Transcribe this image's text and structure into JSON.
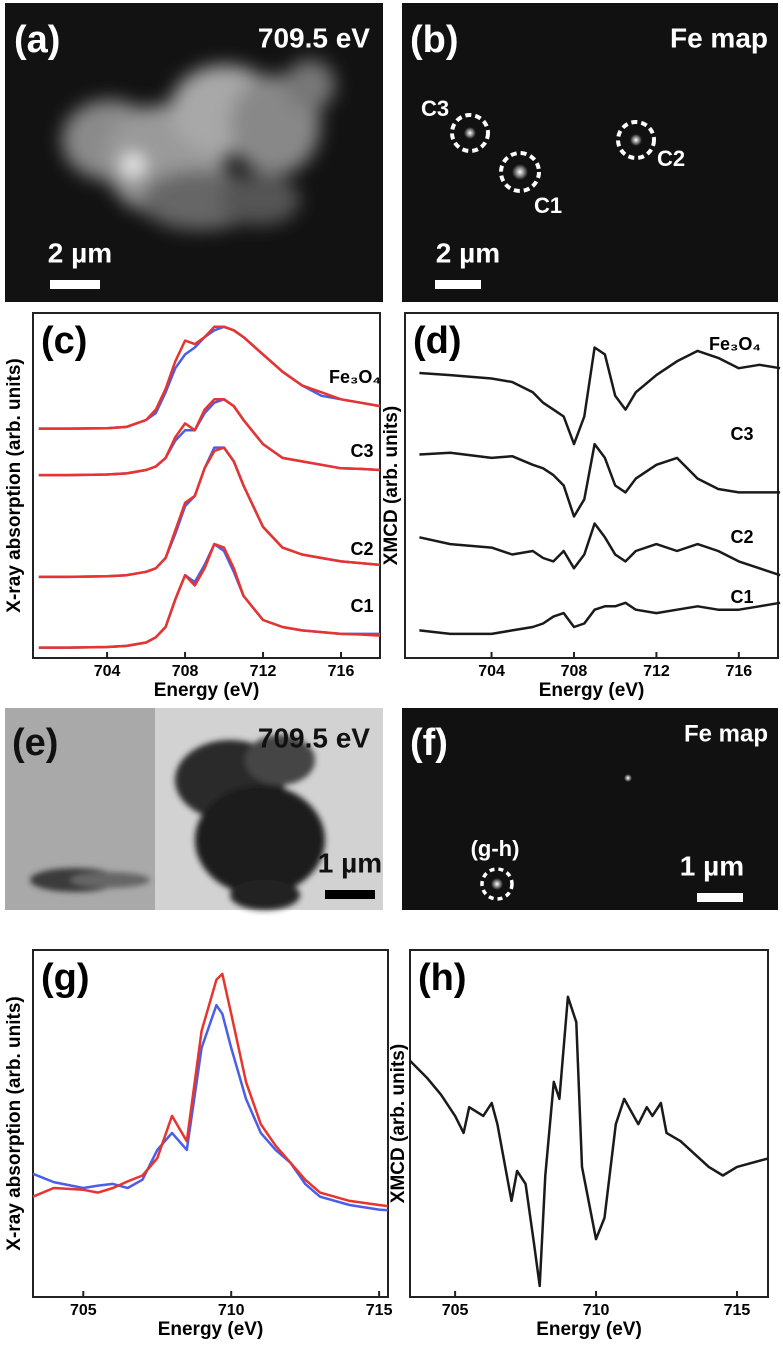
{
  "images": [
    {
      "label": "(a)",
      "caption": "709.5 eV",
      "scale_bar": "2 µm"
    },
    {
      "label": "(b)",
      "caption": "Fe map",
      "markers": [
        "C3",
        "C1",
        "C2"
      ],
      "scale_bar": "2 µm"
    },
    {
      "label": "(e)",
      "caption": "709.5 eV",
      "scale_bar": "1 µm"
    },
    {
      "label": "(f)",
      "caption": "Fe map",
      "markers": [
        "(g-h)"
      ],
      "scale_bar": "1 µm"
    }
  ],
  "chart_data": [
    {
      "type": "line",
      "label": "(c)",
      "xlabel": "Energy (eV)",
      "ylabel": "X-ray absorption (arb. units)",
      "xlim": [
        700.2,
        718
      ],
      "ylim": [
        0,
        100
      ],
      "xticks": [
        704,
        708,
        712,
        716
      ],
      "x": [
        700.5,
        702,
        704,
        705,
        706,
        706.5,
        707,
        707.5,
        708,
        708.5,
        709,
        709.5,
        710,
        710.5,
        711,
        712,
        713,
        714,
        715,
        716,
        717,
        718
      ],
      "series": [
        {
          "color": "#4a5ee8",
          "values": [
            66.5,
            66.5,
            66.6,
            67,
            69,
            71,
            77,
            84,
            88,
            90,
            93,
            95,
            96,
            95,
            93,
            88,
            83,
            79,
            76,
            75,
            74,
            73
          ]
        },
        {
          "color": "#e8342c",
          "values": [
            66.5,
            66.5,
            66.6,
            67,
            69,
            72,
            78,
            86,
            92,
            91,
            93,
            96,
            96,
            95,
            93,
            88,
            83,
            79,
            77,
            75,
            74,
            73
          ]
        },
        {
          "color": "#4a5ee8",
          "values": [
            53,
            53,
            53.2,
            53.5,
            54.5,
            55.5,
            58,
            63,
            66,
            66,
            71,
            74,
            75,
            73,
            69,
            62,
            58,
            57,
            56,
            55,
            54.8,
            54.5
          ]
        },
        {
          "color": "#e8342c",
          "values": [
            53,
            53,
            53.2,
            53.5,
            54.5,
            55.5,
            58,
            64,
            68,
            66,
            72,
            75,
            75,
            73,
            69,
            62,
            58,
            57,
            56,
            55,
            54.8,
            54.5
          ]
        },
        {
          "color": "#4a5ee8",
          "values": [
            23.5,
            23.5,
            23.7,
            24,
            25,
            26,
            29,
            36,
            44,
            47,
            55,
            61,
            61,
            57,
            50,
            38,
            32,
            30,
            29,
            28,
            27.5,
            27
          ]
        },
        {
          "color": "#e8342c",
          "values": [
            23.5,
            23.5,
            23.7,
            24,
            25,
            26,
            29,
            37,
            45,
            47,
            55,
            60,
            61,
            57,
            50,
            38,
            32,
            30,
            29,
            28,
            27.5,
            27
          ]
        },
        {
          "color": "#4a5ee8",
          "values": [
            3,
            3,
            3.2,
            3.5,
            4.5,
            6,
            9,
            17,
            24,
            22,
            27,
            33,
            31,
            25,
            18,
            11,
            9,
            8,
            7.5,
            7,
            7,
            7
          ]
        },
        {
          "color": "#e8342c",
          "values": [
            3,
            3,
            3.2,
            3.5,
            4.5,
            6,
            9,
            17,
            24,
            21,
            26,
            33,
            32,
            26,
            18,
            11,
            9,
            8,
            7.5,
            7,
            6.8,
            6.5
          ]
        }
      ],
      "annotations": [
        "Fe₃O₄",
        "C3",
        "C2",
        "C1"
      ]
    },
    {
      "type": "line",
      "label": "(d)",
      "xlabel": "Energy (eV)",
      "ylabel": "XMCD (arb. units)",
      "xlim": [
        699.8,
        717.9
      ],
      "ylim": [
        0,
        100
      ],
      "xticks": [
        704,
        708,
        712,
        716
      ],
      "x": [
        700.5,
        702,
        704,
        705,
        706,
        706.5,
        707,
        707.5,
        708,
        708.5,
        709,
        709.5,
        710,
        710.5,
        711,
        712,
        713,
        714,
        715,
        716,
        717,
        718
      ],
      "series": [
        {
          "color": "#1a1a1a",
          "values": [
            82.6,
            82,
            81,
            80,
            77,
            74,
            72,
            70,
            62,
            70,
            90,
            88,
            76,
            72,
            77,
            82,
            86,
            89,
            87,
            84,
            85,
            84
          ]
        },
        {
          "color": "#1a1a1a",
          "values": [
            59,
            59.5,
            58,
            58.5,
            56,
            55,
            53,
            50,
            41,
            46,
            62,
            58,
            50,
            48,
            52,
            56,
            58,
            52,
            49,
            48,
            48,
            48
          ]
        },
        {
          "color": "#1a1a1a",
          "values": [
            35,
            33,
            32,
            30,
            31,
            29,
            28,
            31,
            26,
            30,
            39,
            35,
            30,
            28,
            31,
            33,
            31,
            33,
            31,
            28,
            26,
            24
          ]
        },
        {
          "color": "#1a1a1a",
          "values": [
            8,
            7,
            7,
            8,
            9,
            10,
            12,
            13,
            9,
            10,
            14,
            15,
            15,
            16,
            14,
            13,
            14,
            15,
            14,
            14,
            15,
            16
          ]
        }
      ],
      "annotations": [
        "Fe₃O₄",
        "C3",
        "C2",
        "C1"
      ]
    },
    {
      "type": "line",
      "label": "(g)",
      "xlabel": "Energy (eV)",
      "ylabel": "X-ray absorption (arb. units)",
      "xlim": [
        703.3,
        715.3
      ],
      "ylim": [
        0,
        100
      ],
      "xticks": [
        705,
        710,
        715
      ],
      "x": [
        703.3,
        704,
        705,
        705.5,
        706,
        706.5,
        707,
        707.5,
        708,
        708.5,
        709,
        709.5,
        709.7,
        710,
        710.5,
        711,
        711.5,
        712,
        712.5,
        713,
        714,
        715,
        715.3
      ],
      "series": [
        {
          "color": "#4a5ee8",
          "values": [
            35.5,
            33.1,
            31.4,
            32.1,
            32.6,
            31.4,
            33.8,
            42.4,
            47.3,
            42.4,
            71.8,
            84.1,
            81.6,
            71.8,
            57.1,
            47.3,
            42.4,
            38.7,
            32.6,
            28.9,
            26.5,
            25.2,
            25
          ]
        },
        {
          "color": "#e8342c",
          "values": [
            28.9,
            31.4,
            30.9,
            30.1,
            31.4,
            33.3,
            35,
            40,
            52.2,
            44.9,
            76.7,
            91.4,
            93.1,
            81.6,
            62,
            49.8,
            43.6,
            38.7,
            33.8,
            30.1,
            27.7,
            26.5,
            26.2
          ]
        }
      ]
    },
    {
      "type": "line",
      "label": "(h)",
      "xlabel": "Energy (eV)",
      "ylabel": "XMCD (arb. units)",
      "xlim": [
        703.4,
        716.1
      ],
      "ylim": [
        0,
        100
      ],
      "xticks": [
        705,
        710,
        715
      ],
      "x": [
        703.4,
        704,
        704.5,
        705,
        705.3,
        705.5,
        706,
        706.3,
        706.5,
        707,
        707.2,
        707.5,
        707.8,
        708,
        708.2,
        708.5,
        708.7,
        709,
        709.3,
        709.5,
        710,
        710.3,
        710.7,
        711,
        711.5,
        711.8,
        712,
        712.3,
        712.5,
        713,
        714,
        714.5,
        715,
        716.1
      ],
      "series": [
        {
          "color": "#1a1a1a",
          "values": [
            68.1,
            63.2,
            58.3,
            52.2,
            47.3,
            54.7,
            52.2,
            55.9,
            49.8,
            27.7,
            36.3,
            32.6,
            15.4,
            3.2,
            35,
            62,
            57.1,
            86.5,
            79.2,
            37.5,
            16.7,
            22.8,
            49.8,
            57.1,
            49.8,
            54.7,
            52.2,
            55.9,
            47.3,
            44.9,
            37.5,
            35,
            37.5,
            39.9
          ]
        }
      ]
    }
  ]
}
